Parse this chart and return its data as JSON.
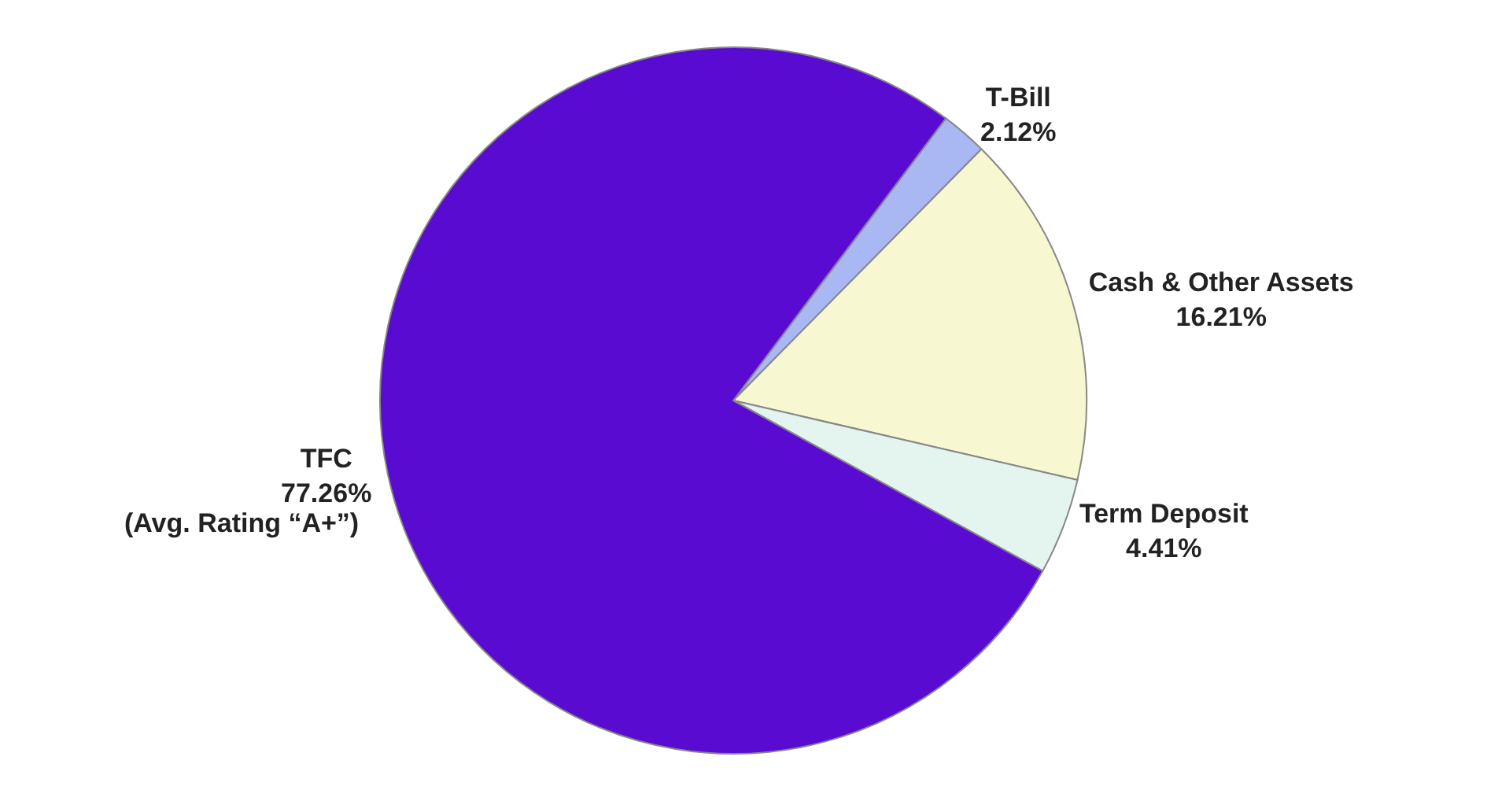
{
  "chart_data": {
    "type": "pie",
    "categories": [
      "T-Bill",
      "Cash & Other Assets",
      "Term Deposit",
      "TFC"
    ],
    "values": [
      2.12,
      16.21,
      4.41,
      77.26
    ],
    "colors": [
      "#a9b8f2",
      "#f7f7d2",
      "#e4f4ef",
      "#5a0bd2"
    ],
    "value_labels": [
      "2.12%",
      "16.21%",
      "4.41%",
      "77.26%"
    ],
    "annotations": [
      "(Avg. Rating “A+”)"
    ],
    "legend": false
  }
}
